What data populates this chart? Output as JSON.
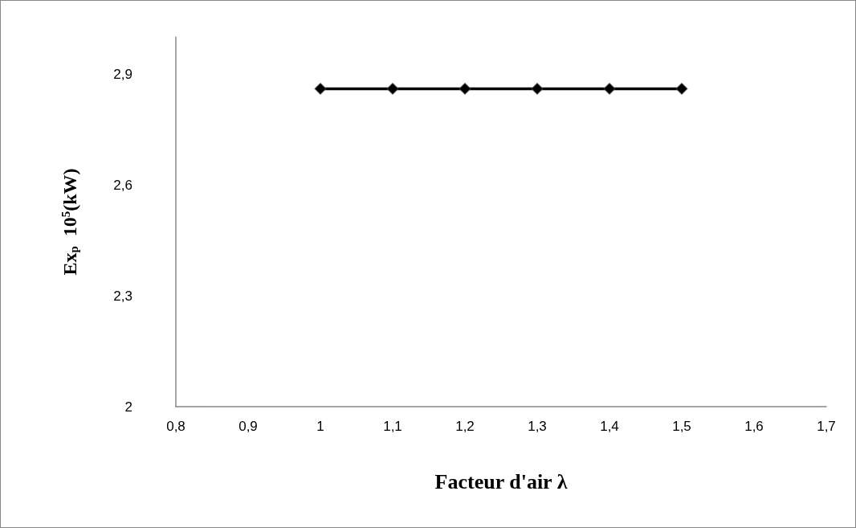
{
  "chart_data": {
    "type": "line",
    "xlabel": "Facteur d'air λ",
    "ylabel": "Ex$_{p}$  10$^{5}$(kW)",
    "x": [
      1,
      1.1,
      1.2,
      1.3,
      1.4,
      1.5
    ],
    "series": [
      {
        "color": "#000000",
        "values": [
          2.86,
          2.86,
          2.86,
          2.86,
          2.86,
          2.86
        ]
      }
    ],
    "xlim": [
      0.8,
      1.7
    ],
    "xticks": [
      {
        "value": 0.8,
        "label": "0,8"
      },
      {
        "value": 0.9,
        "label": "0,9"
      },
      1,
      {
        "value": 1.1,
        "label": "1,1"
      },
      {
        "value": 1.2,
        "label": "1,2"
      },
      {
        "value": 1.3,
        "label": "1,3"
      },
      {
        "value": 1.4,
        "label": "1,4"
      },
      {
        "value": 1.5,
        "label": "1,5"
      },
      {
        "value": 1.6,
        "label": "1,6"
      },
      {
        "value": 1.7,
        "label": "1,7"
      }
    ],
    "ylim": [
      2,
      3
    ],
    "yticks": [
      2,
      {
        "value": 2.3,
        "label": "2,3"
      },
      {
        "value": 2.6,
        "label": "2,6"
      },
      {
        "value": 2.9,
        "label": "2,9"
      }
    ],
    "grid": false,
    "marker": "diamond",
    "line_style": "solid"
  }
}
